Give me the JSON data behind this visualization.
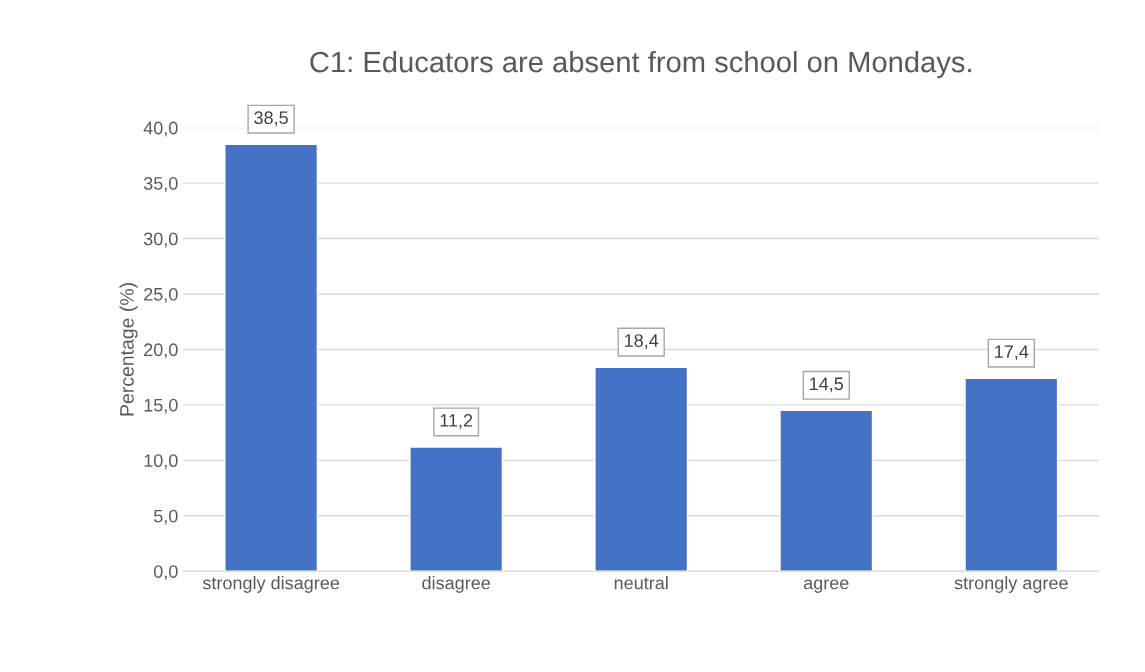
{
  "chart_data": {
    "type": "bar",
    "title": "C1: Educators are absent from school on Mondays.",
    "ylabel": "Percentage (%)",
    "categories": [
      "strongly disagree",
      "disagree",
      "neutral",
      "agree",
      "strongly agree"
    ],
    "values": [
      38.5,
      11.2,
      18.4,
      14.5,
      17.4
    ],
    "value_labels": [
      "38,5",
      "11,2",
      "18,4",
      "14,5",
      "17,4"
    ],
    "color": "#4472c4",
    "ylim": [
      0,
      40
    ],
    "yticks": [
      {
        "value": 0,
        "label": "0,0"
      },
      {
        "value": 5,
        "label": "5,0"
      },
      {
        "value": 10,
        "label": "10,0"
      },
      {
        "value": 15,
        "label": "15,0"
      },
      {
        "value": 20,
        "label": "20,0"
      },
      {
        "value": 25,
        "label": "25,0"
      },
      {
        "value": 30,
        "label": "30,0"
      },
      {
        "value": 35,
        "label": "35,0"
      },
      {
        "value": 40,
        "label": "40,0"
      }
    ],
    "grid": "y"
  }
}
